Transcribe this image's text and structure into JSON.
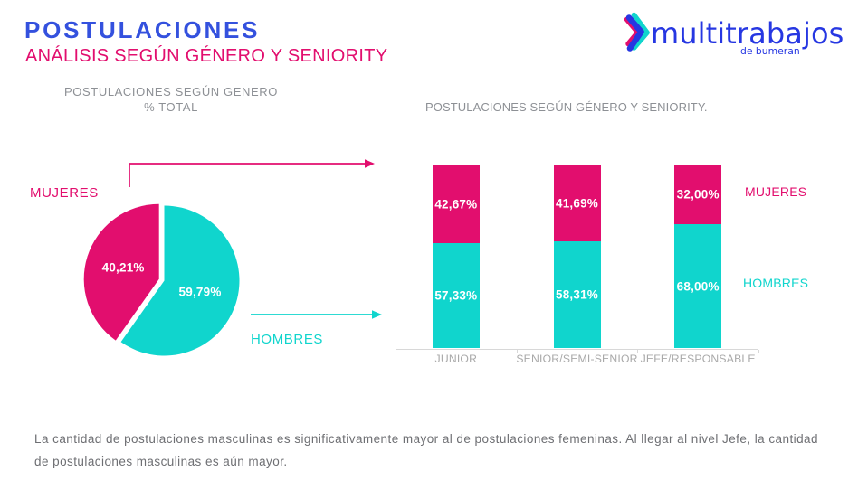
{
  "colors": {
    "title_blue": "#3451de",
    "logo_blue": "#2637e2",
    "magenta": "#e20e6e",
    "cyan": "#10d5cd",
    "gray_title": "#8d9095",
    "gray_label": "#a9a9a9",
    "gray_text": "#6e6f73",
    "axis": "#d8d8d8",
    "white": "#ffffff"
  },
  "header": {
    "title": "POSTULACIONES",
    "subtitle": "ANÁLISIS SEGÚN GÉNERO Y SENIORITY"
  },
  "logo": {
    "brand": "multitrabajos",
    "sub": "de bumeran"
  },
  "pie_section": {
    "title_line1": "POSTULACIONES SEGÚN GENERO",
    "title_line2": "% TOTAL",
    "label_mujeres": "MUJERES",
    "label_hombres": "HOMBRES"
  },
  "bars_section": {
    "title": "POSTULACIONES SEGÚN GÉNERO Y SENIORITY.",
    "legend_mujeres": "MUJERES",
    "legend_hombres": "HOMBRES"
  },
  "note": {
    "line1": "La cantidad de postulaciones masculinas es significativamente mayor al de postulaciones femeninas. Al llegar al nivel Jefe, la cantidad",
    "line2": "de postulaciones masculinas es aún mayor."
  },
  "chart_data": [
    {
      "type": "pie",
      "title": "POSTULACIONES SEGÚN GENERO % TOTAL",
      "labels": [
        "MUJERES",
        "HOMBRES"
      ],
      "values": [
        40.21,
        59.79
      ],
      "value_labels": [
        "40,21%",
        "59,79%"
      ],
      "colors": [
        "#e20e6e",
        "#10d5cd"
      ],
      "start_angle_deg": 0,
      "exploded_slice": "MUJERES"
    },
    {
      "type": "bar",
      "stacked": true,
      "percent_total": 100,
      "title": "POSTULACIONES SEGÚN GÉNERO Y SENIORITY.",
      "categories": [
        "JUNIOR",
        "SENIOR/SEMI-SENIOR",
        "JEFE/RESPONSABLE"
      ],
      "series": [
        {
          "name": "HOMBRES",
          "color": "#10d5cd",
          "values": [
            57.33,
            58.31,
            68.0
          ],
          "value_labels": [
            "57,33%",
            "58,31%",
            "68,00%"
          ]
        },
        {
          "name": "MUJERES",
          "color": "#e20e6e",
          "values": [
            42.67,
            41.69,
            32.0
          ],
          "value_labels": [
            "42,67%",
            "41,69%",
            "32,00%"
          ]
        }
      ],
      "ylim": [
        0,
        100
      ],
      "legend_position": "right",
      "grid": false
    }
  ]
}
